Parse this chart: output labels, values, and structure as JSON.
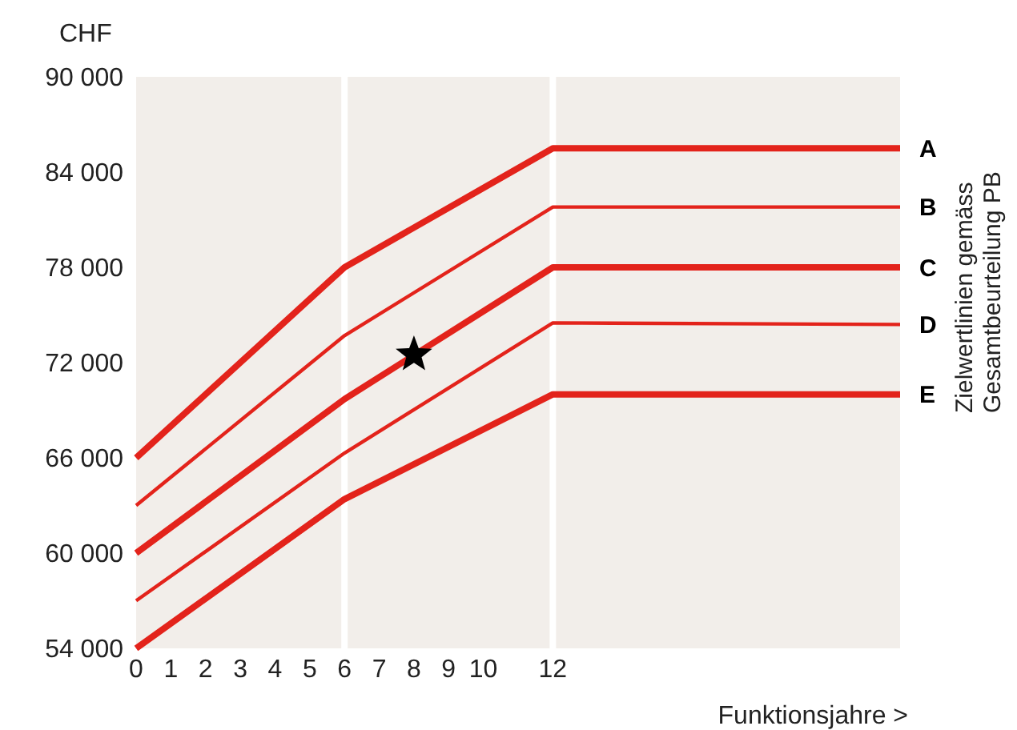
{
  "chart_data": {
    "type": "line",
    "ylabel": "CHF",
    "xlabel": "Funktionsjahre >",
    "annotations": [
      "Zielwertlinien gemäss Gesamtbeurteilung PB"
    ],
    "x": [
      0,
      6,
      12,
      22
    ],
    "xlim": [
      0,
      22
    ],
    "xticks": [
      0,
      1,
      2,
      3,
      4,
      5,
      6,
      7,
      8,
      9,
      10,
      12
    ],
    "ylim": [
      54000,
      90000
    ],
    "yticks": [
      {
        "value": 54000,
        "label": "54 000"
      },
      {
        "value": 60000,
        "label": "60 000"
      },
      {
        "value": 66000,
        "label": "66 000"
      },
      {
        "value": 72000,
        "label": "72 000"
      },
      {
        "value": 78000,
        "label": "78 000"
      },
      {
        "value": 84000,
        "label": "84 000"
      },
      {
        "value": 90000,
        "label": "90 000"
      }
    ],
    "grid": false,
    "marker": "none",
    "line_style": "solid",
    "ref_lines": [
      {
        "axis": "x",
        "value": 6,
        "color": "#ffffff"
      },
      {
        "axis": "x",
        "value": 12,
        "color": "#ffffff"
      }
    ],
    "series": [
      {
        "name": "A",
        "color": "#e3231b",
        "values": [
          66000,
          78000,
          85500,
          85500
        ]
      },
      {
        "name": "B",
        "color": "#e3231b",
        "values": [
          63000,
          73700,
          81800,
          81800
        ]
      },
      {
        "name": "C",
        "color": "#e3231b",
        "values": [
          60000,
          69700,
          78000,
          78000
        ]
      },
      {
        "name": "D",
        "color": "#e3231b",
        "values": [
          57000,
          66300,
          74500,
          74400
        ]
      },
      {
        "name": "E",
        "color": "#e3231b",
        "values": [
          54000,
          63400,
          70000,
          70000
        ]
      },
      {
        "type": "scatter",
        "marker": "star",
        "color": "#000000",
        "x": [
          8
        ],
        "values": [
          72500
        ]
      }
    ]
  }
}
